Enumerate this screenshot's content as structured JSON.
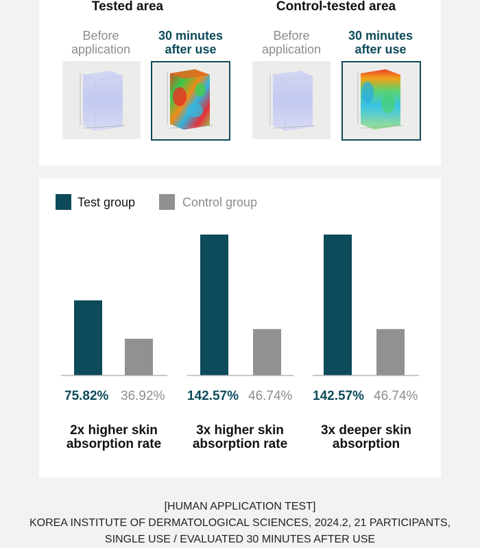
{
  "image_test": {
    "tested_title": "Tested area",
    "control_title": "Control-tested area",
    "before_label_1": "Before",
    "before_label_2": "application",
    "after_label_1": "30 minutes",
    "after_label_2": "after use"
  },
  "legend": {
    "test_label": "Test group",
    "control_label": "Control group"
  },
  "colors": {
    "test": "#0d4a5a",
    "control": "#919191",
    "axis": "#b5b5b5"
  },
  "chart_data": {
    "type": "bar",
    "categories": [
      "2x higher skin absorption rate",
      "3x higher skin absorption rate",
      "3x deeper skin absorption"
    ],
    "series": [
      {
        "name": "Test group",
        "values": [
          75.82,
          142.57,
          142.57
        ],
        "labels": [
          "75.82%",
          "142.57%",
          "142.57%"
        ]
      },
      {
        "name": "Control group",
        "values": [
          36.92,
          46.74,
          46.74
        ],
        "labels": [
          "36.92%",
          "46.74%",
          "46.74%"
        ]
      }
    ],
    "descriptions": [
      {
        "line1": "2x higher skin",
        "line2": "absorption rate"
      },
      {
        "line1": "3x higher skin",
        "line2": "absorption rate"
      },
      {
        "line1": "3x deeper skin",
        "line2": "absorption"
      }
    ],
    "ylim": [
      0,
      142.57
    ],
    "legend_position": "top-left",
    "grid": false
  },
  "footnote": {
    "line1": "[HUMAN APPLICATION TEST]",
    "line2": "KOREA INSTITUTE OF DERMATOLOGICAL SCIENCES, 2024.2, 21 PARTICIPANTS,",
    "line3": "SINGLE USE / EVALUATED 30 MINUTES AFTER USE"
  }
}
